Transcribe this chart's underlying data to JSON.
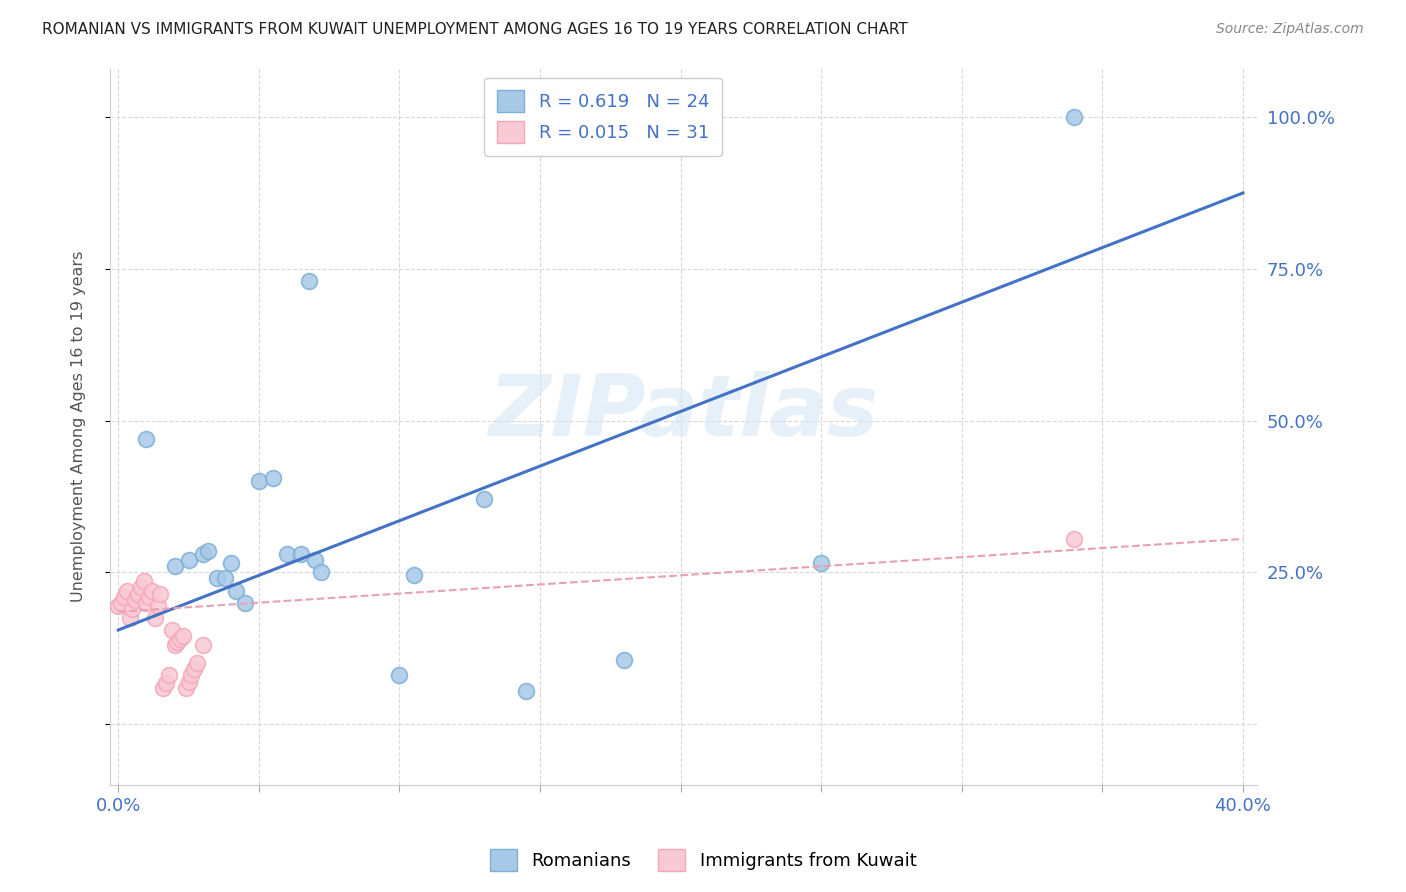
{
  "title": "ROMANIAN VS IMMIGRANTS FROM KUWAIT UNEMPLOYMENT AMONG AGES 16 TO 19 YEARS CORRELATION CHART",
  "source": "Source: ZipAtlas.com",
  "ylabel_color": "#4472c4",
  "xlabel_color": "#4472c4",
  "watermark": "ZIPatlas",
  "blue_R": 0.619,
  "blue_N": 24,
  "pink_R": 0.015,
  "pink_N": 31,
  "blue_color": "#a8c8e8",
  "blue_edge_color": "#7bafd4",
  "pink_color": "#f9c9d4",
  "pink_edge_color": "#f4a7b9",
  "blue_scatter_x": [
    0.01,
    0.02,
    0.025,
    0.03,
    0.032,
    0.035,
    0.038,
    0.04,
    0.042,
    0.045,
    0.05,
    0.055,
    0.06,
    0.065,
    0.068,
    0.07,
    0.072,
    0.1,
    0.105,
    0.13,
    0.145,
    0.18,
    0.25,
    0.34
  ],
  "blue_scatter_y": [
    0.47,
    0.26,
    0.27,
    0.28,
    0.285,
    0.24,
    0.24,
    0.265,
    0.22,
    0.2,
    0.4,
    0.405,
    0.28,
    0.28,
    0.73,
    0.27,
    0.25,
    0.08,
    0.245,
    0.37,
    0.055,
    0.105,
    0.265,
    1.0
  ],
  "pink_scatter_x": [
    0.0,
    0.001,
    0.002,
    0.003,
    0.004,
    0.005,
    0.006,
    0.007,
    0.008,
    0.009,
    0.01,
    0.011,
    0.012,
    0.013,
    0.014,
    0.015,
    0.016,
    0.017,
    0.018,
    0.019,
    0.02,
    0.021,
    0.022,
    0.023,
    0.024,
    0.025,
    0.026,
    0.027,
    0.028,
    0.03,
    0.34
  ],
  "pink_scatter_y": [
    0.195,
    0.2,
    0.21,
    0.22,
    0.175,
    0.19,
    0.205,
    0.215,
    0.225,
    0.235,
    0.2,
    0.21,
    0.22,
    0.175,
    0.195,
    0.215,
    0.06,
    0.068,
    0.08,
    0.155,
    0.13,
    0.135,
    0.14,
    0.145,
    0.06,
    0.07,
    0.08,
    0.09,
    0.1,
    0.13,
    0.305
  ],
  "blue_trend_x": [
    0.0,
    0.4
  ],
  "blue_trend_y": [
    0.155,
    0.875
  ],
  "pink_trend_x": [
    0.0,
    0.4
  ],
  "pink_trend_y": [
    0.185,
    0.305
  ],
  "blue_trend_color": "#4472c4",
  "pink_trend_color": "#e8a0b0",
  "legend_label_blue": "Romanians",
  "legend_label_pink": "Immigrants from Kuwait",
  "marker_size": 130,
  "background_color": "#ffffff",
  "grid_color": "#d8d8d8",
  "xmin": -0.003,
  "xmax": 0.405,
  "ymin": -0.1,
  "ymax": 1.08,
  "xtick_positions": [
    0.0,
    0.05,
    0.1,
    0.15,
    0.2,
    0.25,
    0.3,
    0.35,
    0.4
  ],
  "xtick_labels": [
    "0.0%",
    "",
    "",
    "",
    "",
    "",
    "",
    "",
    "40.0%"
  ],
  "ytick_positions": [
    0.0,
    0.25,
    0.5,
    0.75,
    1.0
  ],
  "ytick_labels": [
    "",
    "25.0%",
    "50.0%",
    "75.0%",
    "100.0%"
  ]
}
